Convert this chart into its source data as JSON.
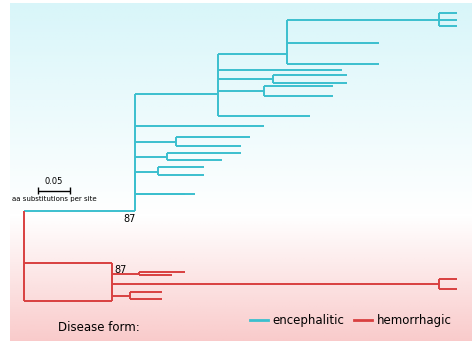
{
  "fig_width": 4.74,
  "fig_height": 3.44,
  "dpi": 100,
  "bg_color": "#ffffff",
  "cyan_color": "#3bbfce",
  "red_color": "#d94040",
  "cyan_bg_top": "#b8eef5",
  "cyan_bg_bottom": "#ffffff",
  "red_bg_top": "#f5a0a0",
  "red_bg_bottom": "#ffffff",
  "title_text": "Disease form:",
  "encephalitic_label": "encephalitic",
  "hemorrhagic_label": "hemorrhagic",
  "scale_label_top": "0.05",
  "scale_label_bottom": "aa substitutions per site",
  "bootstrap_label": "87",
  "lw": 1.4
}
